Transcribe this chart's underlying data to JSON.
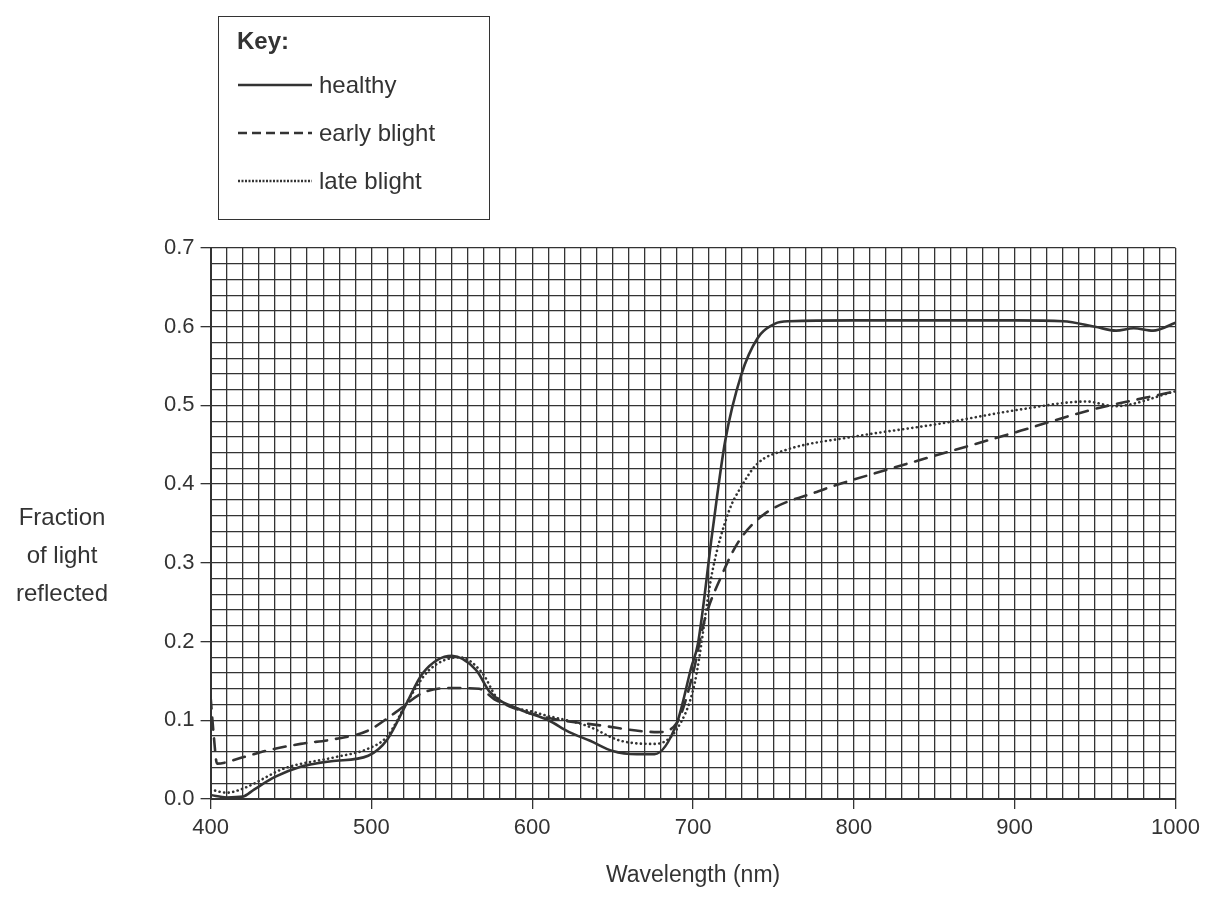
{
  "chart_data": {
    "type": "line",
    "xlabel": "Wavelength (nm)",
    "ylabel": "Fraction of light reflected",
    "legend_title": "Key:",
    "legend": "top left",
    "grid": true,
    "marker": "none",
    "xlim": [
      400,
      1000
    ],
    "ylim": [
      0,
      0.7
    ],
    "xticks": [
      400,
      {
        "value": 410,
        "label": null
      },
      {
        "value": 420,
        "label": null
      },
      {
        "value": 430,
        "label": null
      },
      {
        "value": 440,
        "label": null
      },
      {
        "value": 450,
        "label": null
      },
      {
        "value": 460,
        "label": null
      },
      {
        "value": 470,
        "label": null
      },
      {
        "value": 480,
        "label": null
      },
      {
        "value": 490,
        "label": null
      },
      500,
      {
        "value": 510,
        "label": null
      },
      {
        "value": 520,
        "label": null
      },
      {
        "value": 530,
        "label": null
      },
      {
        "value": 540,
        "label": null
      },
      {
        "value": 550,
        "label": null
      },
      {
        "value": 560,
        "label": null
      },
      {
        "value": 570,
        "label": null
      },
      {
        "value": 580,
        "label": null
      },
      {
        "value": 590,
        "label": null
      },
      600,
      {
        "value": 610,
        "label": null
      },
      {
        "value": 620,
        "label": null
      },
      {
        "value": 630,
        "label": null
      },
      {
        "value": 640,
        "label": null
      },
      {
        "value": 650,
        "label": null
      },
      {
        "value": 660,
        "label": null
      },
      {
        "value": 670,
        "label": null
      },
      {
        "value": 680,
        "label": null
      },
      {
        "value": 690,
        "label": null
      },
      700,
      {
        "value": 710,
        "label": null
      },
      {
        "value": 720,
        "label": null
      },
      {
        "value": 730,
        "label": null
      },
      {
        "value": 740,
        "label": null
      },
      {
        "value": 750,
        "label": null
      },
      {
        "value": 760,
        "label": null
      },
      {
        "value": 770,
        "label": null
      },
      {
        "value": 780,
        "label": null
      },
      {
        "value": 790,
        "label": null
      },
      800,
      {
        "value": 810,
        "label": null
      },
      {
        "value": 820,
        "label": null
      },
      {
        "value": 830,
        "label": null
      },
      {
        "value": 840,
        "label": null
      },
      {
        "value": 850,
        "label": null
      },
      {
        "value": 860,
        "label": null
      },
      {
        "value": 870,
        "label": null
      },
      {
        "value": 880,
        "label": null
      },
      {
        "value": 890,
        "label": null
      },
      900,
      {
        "value": 910,
        "label": null
      },
      {
        "value": 920,
        "label": null
      },
      {
        "value": 930,
        "label": null
      },
      {
        "value": 940,
        "label": null
      },
      {
        "value": 950,
        "label": null
      },
      {
        "value": 960,
        "label": null
      },
      {
        "value": 970,
        "label": null
      },
      {
        "value": 980,
        "label": null
      },
      {
        "value": 990,
        "label": null
      },
      1000
    ],
    "yticks": [
      {
        "value": 0,
        "label": "0.0"
      },
      {
        "value": 0.02,
        "label": null
      },
      {
        "value": 0.04,
        "label": null
      },
      {
        "value": 0.06,
        "label": null
      },
      {
        "value": 0.08,
        "label": null
      },
      0.1,
      {
        "value": 0.12,
        "label": null
      },
      {
        "value": 0.14,
        "label": null
      },
      {
        "value": 0.16,
        "label": null
      },
      {
        "value": 0.18,
        "label": null
      },
      0.2,
      {
        "value": 0.22,
        "label": null
      },
      {
        "value": 0.24,
        "label": null
      },
      {
        "value": 0.26,
        "label": null
      },
      {
        "value": 0.28,
        "label": null
      },
      0.3,
      {
        "value": 0.32,
        "label": null
      },
      {
        "value": 0.34,
        "label": null
      },
      {
        "value": 0.36,
        "label": null
      },
      {
        "value": 0.38,
        "label": null
      },
      0.4,
      {
        "value": 0.42,
        "label": null
      },
      {
        "value": 0.44,
        "label": null
      },
      {
        "value": 0.46,
        "label": null
      },
      {
        "value": 0.48,
        "label": null
      },
      0.5,
      {
        "value": 0.52,
        "label": null
      },
      {
        "value": 0.54,
        "label": null
      },
      {
        "value": 0.56,
        "label": null
      },
      {
        "value": 0.58,
        "label": null
      },
      0.6,
      {
        "value": 0.62,
        "label": null
      },
      {
        "value": 0.64,
        "label": null
      },
      {
        "value": 0.66,
        "label": null
      },
      {
        "value": 0.68,
        "label": null
      },
      0.7
    ],
    "series": [
      {
        "name": "healthy",
        "color": "#333333",
        "line_style": "solid",
        "x": [
          400,
          410,
          420,
          427,
          440,
          456,
          475,
          498,
          510,
          521,
          532,
          550,
          565,
          574,
          592,
          610,
          623,
          636,
          650,
          665,
          676,
          690,
          699,
          703,
          712,
          720,
          730,
          740,
          751,
          760,
          800,
          850,
          900,
          930,
          950,
          963,
          974,
          986,
          1000
        ],
        "values": [
          0.005,
          0.002,
          0.003,
          0.012,
          0.028,
          0.041,
          0.048,
          0.055,
          0.076,
          0.118,
          0.16,
          0.182,
          0.164,
          0.135,
          0.114,
          0.1,
          0.085,
          0.074,
          0.061,
          0.057,
          0.057,
          0.097,
          0.168,
          0.197,
          0.339,
          0.455,
          0.539,
          0.585,
          0.604,
          0.607,
          0.608,
          0.608,
          0.608,
          0.607,
          0.6,
          0.595,
          0.598,
          0.595,
          0.605
        ]
      },
      {
        "name": "early blight",
        "color": "#333333",
        "line_style": "dashed",
        "x": [
          400,
          402,
          404,
          420,
          436,
          456,
          477,
          498,
          515,
          532,
          550,
          567,
          577,
          602,
          644,
          678,
          690,
          700,
          707,
          718,
          728,
          743,
          778,
          820,
          862,
          904,
          945,
          1000
        ],
        "values": [
          0.13,
          0.08,
          0.045,
          0.053,
          0.062,
          0.07,
          0.076,
          0.087,
          0.11,
          0.135,
          0.141,
          0.14,
          0.126,
          0.107,
          0.093,
          0.085,
          0.097,
          0.16,
          0.226,
          0.285,
          0.326,
          0.36,
          0.391,
          0.418,
          0.443,
          0.468,
          0.493,
          0.518
        ]
      },
      {
        "name": "late blight",
        "color": "#333333",
        "line_style": "dotted",
        "x": [
          400,
          410,
          421,
          446,
          477,
          498,
          510,
          523,
          536,
          555,
          569,
          578,
          602,
          634,
          655,
          676,
          690,
          701,
          712,
          722,
          730,
          740,
          757,
          799,
          851,
          904,
          945,
          962,
          1000
        ],
        "values": [
          0.012,
          0.008,
          0.014,
          0.039,
          0.053,
          0.064,
          0.08,
          0.126,
          0.164,
          0.18,
          0.16,
          0.129,
          0.11,
          0.093,
          0.074,
          0.07,
          0.089,
          0.147,
          0.289,
          0.364,
          0.397,
          0.426,
          0.443,
          0.46,
          0.476,
          0.495,
          0.505,
          0.499,
          0.518
        ]
      }
    ]
  }
}
